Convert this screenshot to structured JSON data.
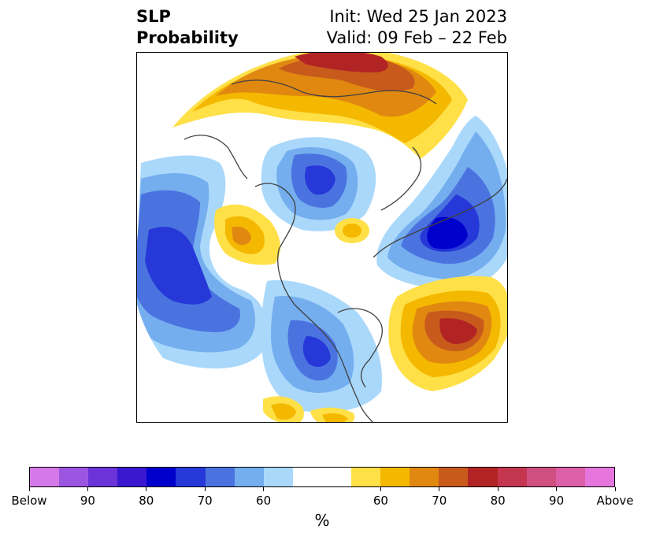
{
  "title": {
    "left_line1": "SLP",
    "left_line2": "Probability",
    "right_line1": "Init: Wed 25 Jan 2023",
    "right_line2": "Valid: 09 Feb – 22 Feb"
  },
  "colorbar": {
    "colors": [
      "#d578e8",
      "#9c55e0",
      "#6a34d8",
      "#3a18d0",
      "#0000cc",
      "#2638d8",
      "#4b73e0",
      "#74aeef",
      "#aad8fb",
      "#ffffff",
      "#ffffff",
      "#ffe047",
      "#f5b800",
      "#e08810",
      "#c85a1c",
      "#b22424",
      "#c43650",
      "#cf5080",
      "#dd5fa8",
      "#e676de"
    ],
    "ticks": [
      {
        "label": "Below",
        "index": 0
      },
      {
        "label": "90",
        "index": 2
      },
      {
        "label": "80",
        "index": 4
      },
      {
        "label": "70",
        "index": 6
      },
      {
        "label": "60",
        "index": 8
      },
      {
        "label": "60",
        "index": 12
      },
      {
        "label": "70",
        "index": 14
      },
      {
        "label": "80",
        "index": 16
      },
      {
        "label": "90",
        "index": 18
      },
      {
        "label": "Above",
        "index": 20
      }
    ],
    "unit_label": "%"
  }
}
